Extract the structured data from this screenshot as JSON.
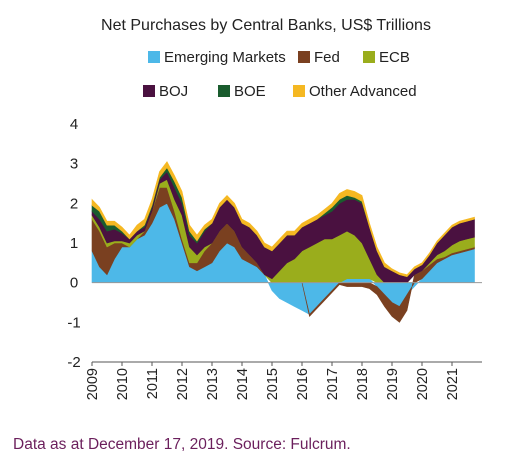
{
  "chart_data": {
    "type": "area",
    "stacked": true,
    "title": "Net Purchases by Central Banks, US$ Trillions",
    "xlabel": "",
    "ylabel": "",
    "ylim": [
      -2,
      4
    ],
    "yticks": [
      -2,
      -1,
      0,
      1,
      2,
      3,
      4
    ],
    "xlim": [
      2009,
      2022
    ],
    "xticks": [
      "2009",
      "2010",
      "2011",
      "2012",
      "2013",
      "2014",
      "2015",
      "2016",
      "2017",
      "2018",
      "2019",
      "2020",
      "2021"
    ],
    "legend_placement": "top",
    "grid": false,
    "x": [
      2009.0,
      2009.25,
      2009.5,
      2009.75,
      2010.0,
      2010.25,
      2010.5,
      2010.75,
      2011.0,
      2011.25,
      2011.5,
      2011.75,
      2012.0,
      2012.25,
      2012.5,
      2012.75,
      2013.0,
      2013.25,
      2013.5,
      2013.75,
      2014.0,
      2014.25,
      2014.5,
      2014.75,
      2015.0,
      2015.25,
      2015.5,
      2015.75,
      2016.0,
      2016.25,
      2016.5,
      2016.75,
      2017.0,
      2017.25,
      2017.5,
      2017.75,
      2018.0,
      2018.25,
      2018.5,
      2018.75,
      2019.0,
      2019.25,
      2019.5,
      2019.75,
      2020.0,
      2020.25,
      2020.5,
      2020.75,
      2021.0,
      2021.25,
      2021.5,
      2021.75
    ],
    "series": [
      {
        "name": "Emerging Markets",
        "color": "#4db8e8",
        "values": [
          0.8,
          0.4,
          0.2,
          0.6,
          0.9,
          0.9,
          1.1,
          1.2,
          1.5,
          1.9,
          2.0,
          1.6,
          1.0,
          0.4,
          0.3,
          0.4,
          0.5,
          0.8,
          1.0,
          0.9,
          0.6,
          0.5,
          0.4,
          0.2,
          -0.2,
          -0.4,
          -0.5,
          -0.6,
          -0.7,
          -0.8,
          -0.6,
          -0.4,
          -0.2,
          0.0,
          0.1,
          0.1,
          0.1,
          0.1,
          -0.1,
          -0.3,
          -0.5,
          -0.6,
          -0.3,
          -0.1,
          0.1,
          0.3,
          0.5,
          0.6,
          0.7,
          0.75,
          0.8,
          0.85
        ]
      },
      {
        "name": "Fed",
        "color": "#7a4020",
        "values": [
          0.8,
          0.9,
          0.7,
          0.4,
          0.1,
          0.0,
          0.0,
          0.1,
          0.3,
          0.5,
          0.4,
          0.2,
          0.1,
          0.1,
          0.2,
          0.4,
          0.5,
          0.5,
          0.5,
          0.4,
          0.3,
          0.2,
          0.1,
          0.0,
          0.0,
          0.0,
          0.0,
          0.0,
          0.0,
          -0.05,
          -0.05,
          -0.05,
          -0.05,
          -0.05,
          -0.1,
          -0.1,
          -0.1,
          -0.15,
          -0.2,
          -0.3,
          -0.35,
          -0.4,
          -0.4,
          0.2,
          0.2,
          0.15,
          0.1,
          0.05,
          0.05,
          0.05,
          0.05,
          0.05
        ]
      },
      {
        "name": "ECB",
        "color": "#9aad1c",
        "values": [
          0.1,
          0.1,
          0.1,
          0.05,
          0.05,
          0.1,
          0.1,
          0.0,
          0.0,
          0.1,
          0.2,
          0.3,
          0.6,
          0.4,
          0.2,
          0.1,
          0.0,
          0.0,
          0.0,
          0.0,
          0.0,
          0.0,
          0.0,
          0.0,
          0.1,
          0.3,
          0.5,
          0.6,
          0.8,
          0.9,
          1.0,
          1.1,
          1.1,
          1.2,
          1.2,
          1.1,
          0.9,
          0.5,
          0.2,
          0.0,
          0.0,
          0.0,
          0.0,
          0.0,
          0.0,
          0.05,
          0.1,
          0.15,
          0.2,
          0.25,
          0.25,
          0.25
        ]
      },
      {
        "name": "BOJ",
        "color": "#4a1140",
        "values": [
          0.1,
          0.2,
          0.3,
          0.3,
          0.2,
          0.1,
          0.1,
          0.1,
          0.1,
          0.1,
          0.2,
          0.3,
          0.3,
          0.3,
          0.3,
          0.4,
          0.5,
          0.6,
          0.6,
          0.6,
          0.6,
          0.7,
          0.7,
          0.7,
          0.7,
          0.7,
          0.7,
          0.6,
          0.6,
          0.6,
          0.6,
          0.6,
          0.7,
          0.8,
          0.8,
          0.9,
          1.0,
          0.8,
          0.6,
          0.4,
          0.3,
          0.2,
          0.15,
          0.15,
          0.15,
          0.2,
          0.3,
          0.4,
          0.45,
          0.45,
          0.45,
          0.45
        ]
      },
      {
        "name": "BOE",
        "color": "#1a5c2e",
        "values": [
          0.15,
          0.2,
          0.15,
          0.1,
          0.05,
          0.0,
          0.0,
          0.05,
          0.05,
          0.05,
          0.1,
          0.15,
          0.15,
          0.1,
          0.05,
          0.05,
          0.0,
          0.0,
          0.0,
          0.0,
          0.0,
          0.0,
          0.0,
          0.0,
          0.0,
          0.0,
          0.0,
          0.0,
          0.0,
          0.0,
          0.0,
          0.05,
          0.1,
          0.1,
          0.1,
          0.05,
          0.05,
          0.0,
          0.0,
          0.0,
          0.0,
          0.0,
          0.0,
          0.0,
          0.0,
          0.0,
          0.0,
          0.0,
          0.0,
          0.0,
          0.0,
          0.0
        ]
      },
      {
        "name": "Other Advanced",
        "color": "#f5b822",
        "values": [
          0.15,
          0.1,
          0.1,
          0.1,
          0.1,
          0.1,
          0.15,
          0.15,
          0.15,
          0.15,
          0.15,
          0.15,
          0.15,
          0.15,
          0.15,
          0.1,
          0.1,
          0.1,
          0.1,
          0.1,
          0.1,
          0.1,
          0.1,
          0.1,
          0.1,
          0.1,
          0.1,
          0.1,
          0.1,
          0.1,
          0.1,
          0.1,
          0.1,
          0.15,
          0.15,
          0.15,
          0.15,
          0.1,
          0.1,
          0.1,
          0.05,
          0.05,
          0.05,
          0.05,
          0.05,
          0.05,
          0.05,
          0.05,
          0.05,
          0.05,
          0.05,
          0.05
        ]
      }
    ]
  },
  "source_note": "Data as at December 17, 2019. Source: Fulcrum."
}
